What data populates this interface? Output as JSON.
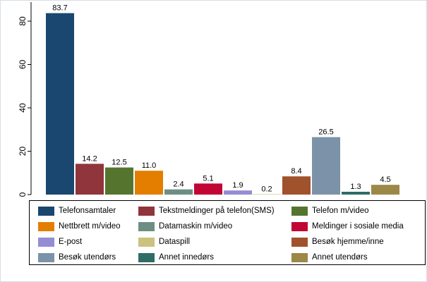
{
  "chart_data": {
    "type": "bar",
    "title": "",
    "xlabel": "",
    "ylabel": "",
    "ylim": [
      0,
      88
    ],
    "yticks": [
      0,
      20,
      40,
      60,
      80
    ],
    "groups": [
      {
        "categories": [
          "Telefonsamtaler",
          "Tekstmeldinger på telefon(SMS)",
          "Telefon m/video",
          "Nettbrett m/video",
          "Datamaskin m/video",
          "Meldinger i sosiale media",
          "E-post"
        ]
      },
      {
        "categories": [
          "Dataspill",
          "Besøk hjemme/inne",
          "Besøk utendørs",
          "Annet innedørs",
          "Annet utendørs"
        ]
      }
    ],
    "series": [
      {
        "name": "Telefonsamtaler",
        "value": 83.7,
        "label": "83.7",
        "color": "#1a476f"
      },
      {
        "name": "Tekstmeldinger på telefon(SMS)",
        "value": 14.2,
        "label": "14.2",
        "color": "#90353b"
      },
      {
        "name": "Telefon m/video",
        "value": 12.5,
        "label": "12.5",
        "color": "#55752f"
      },
      {
        "name": "Nettbrett m/video",
        "value": 11.0,
        "label": "11.0",
        "color": "#e37e00"
      },
      {
        "name": "Datamaskin m/video",
        "value": 2.4,
        "label": "2.4",
        "color": "#6e8e84"
      },
      {
        "name": "Meldinger i sosiale media",
        "value": 5.1,
        "label": "5.1",
        "color": "#c10534"
      },
      {
        "name": "E-post",
        "value": 1.9,
        "label": "1.9",
        "color": "#938dd2"
      },
      {
        "name": "Dataspill",
        "value": 0.2,
        "label": "0.2",
        "color": "#cac27e"
      },
      {
        "name": "Besøk hjemme/inne",
        "value": 8.4,
        "label": "8.4",
        "color": "#a0522d"
      },
      {
        "name": "Besøk utendørs",
        "value": 26.5,
        "label": "26.5",
        "color": "#7b92a8"
      },
      {
        "name": "Annet innedørs",
        "value": 1.3,
        "label": "1.3",
        "color": "#2d6d66"
      },
      {
        "name": "Annet utendørs",
        "value": 4.5,
        "label": "4.5",
        "color": "#9c8847"
      }
    ],
    "legend": {
      "placement": "bottom",
      "items": [
        "Telefonsamtaler",
        "Tekstmeldinger på telefon(SMS)",
        "Telefon m/video",
        "Nettbrett m/video",
        "Datamaskin m/video",
        "Meldinger i sosiale media",
        "E-post",
        "Dataspill",
        "Besøk hjemme/inne",
        "Besøk utendørs",
        "Annet innedørs",
        "Annet utendørs"
      ]
    }
  }
}
